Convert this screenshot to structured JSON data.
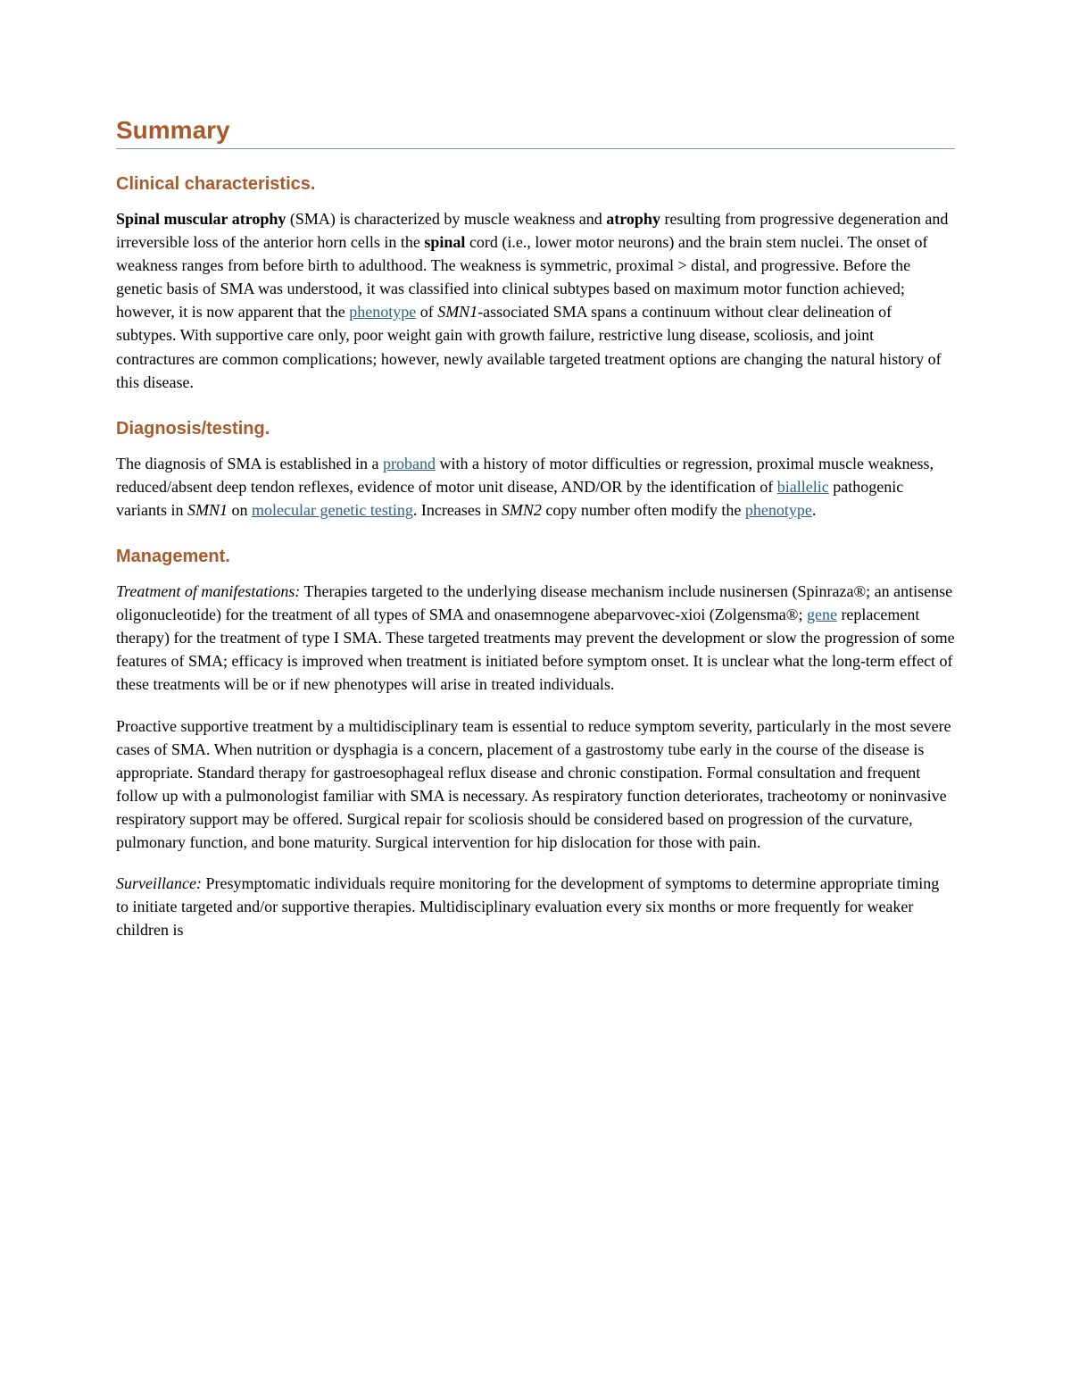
{
  "title": "Summary",
  "sections": {
    "clinical": {
      "heading": "Clinical characteristics.",
      "p1_bold1": "Spinal muscular atrophy",
      "p1_t1": " (SMA) is characterized by muscle weakness and ",
      "p1_bold2": "atrophy",
      "p1_t2": " resulting from progressive degeneration and irreversible loss of the anterior horn cells in the ",
      "p1_bold3": "spinal",
      "p1_t3": " cord (i.e., lower motor neurons) and the brain stem nuclei. The onset of weakness ranges from before birth to adulthood. The weakness is symmetric, proximal > distal, and progressive. Before the genetic basis of SMA was understood, it was classified into clinical subtypes based on maximum motor function achieved; however, it is now apparent that the ",
      "p1_link_phenotype": "phenotype",
      "p1_t4": " of ",
      "p1_italic_smn1": "SMN1",
      "p1_t5": "-associated SMA spans a continuum without clear delineation of subtypes. With supportive care only, poor weight gain with growth failure, restrictive lung disease, scoliosis, and joint contractures are common complications; however, newly available targeted treatment options are changing the natural history of this disease."
    },
    "diagnosis": {
      "heading": "Diagnosis/testing.",
      "p1_t1": "The diagnosis of SMA is established in a ",
      "p1_link_proband": "proband",
      "p1_t2": " with a history of motor difficulties or regression, proximal muscle weakness, reduced/absent deep tendon reflexes, evidence of motor unit disease, AND/OR by the identification of ",
      "p1_link_biallelic": "biallelic",
      "p1_t3": " pathogenic variants in ",
      "p1_italic_smn1": "SMN1",
      "p1_t4": " on ",
      "p1_link_molecular": "molecular genetic testing",
      "p1_t5": ". Increases in ",
      "p1_italic_smn2": "SMN2",
      "p1_t6": " copy number often modify the ",
      "p1_link_phenotype": "phenotype",
      "p1_t7": "."
    },
    "management": {
      "heading": "Management.",
      "p1_italic_lead": "Treatment of manifestations:",
      "p1_t1": " Therapies targeted to the underlying disease mechanism include nusinersen (Spinraza®; an antisense oligonucleotide) for the treatment of all types of SMA and onasemnogene abeparvovec-xioi (Zolgensma®; ",
      "p1_link_gene": "gene",
      "p1_t2": " replacement therapy) for the treatment of type I SMA. These targeted treatments may prevent the development or slow the progression of some features of SMA; efficacy is improved when treatment is initiated before symptom onset. It is unclear what the long-term effect of these treatments will be or if new phenotypes will arise in treated individuals.",
      "p2": "Proactive supportive treatment by a multidisciplinary team is essential to reduce symptom severity, particularly in the most severe cases of SMA. When nutrition or dysphagia is a concern, placement of a gastrostomy tube early in the course of the disease is appropriate. Standard therapy for gastroesophageal reflux disease and chronic constipation. Formal consultation and frequent follow up with a pulmonologist familiar with SMA is necessary. As respiratory function deteriorates, tracheotomy or noninvasive respiratory support may be offered. Surgical repair for scoliosis should be considered based on progression of the curvature, pulmonary function, and bone maturity. Surgical intervention for hip dislocation for those with pain.",
      "p3_italic_lead": "Surveillance:",
      "p3_t1": " Presymptomatic individuals require monitoring for the development of symptoms to determine appropriate timing to initiate targeted and/or supportive therapies. Multidisciplinary evaluation every six months or more frequently for weaker children is"
    }
  }
}
